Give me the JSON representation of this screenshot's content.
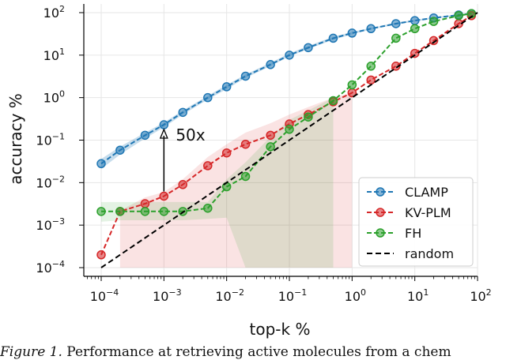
{
  "chart_data": {
    "type": "line",
    "xlabel": "top-k %",
    "ylabel": "accuracy %",
    "xscale": "log",
    "yscale": "log",
    "xlim": [
      0.0001,
      100
    ],
    "ylim": [
      0.0001,
      100
    ],
    "grid": true,
    "legend_position": "lower-right",
    "x_ticks": [
      0.0001,
      0.001,
      0.01,
      0.1,
      1,
      10,
      100
    ],
    "x_tick_labels": [
      [
        "10",
        "-4"
      ],
      [
        "10",
        "-3"
      ],
      [
        "10",
        "-2"
      ],
      [
        "10",
        "-1"
      ],
      [
        "10",
        "0"
      ],
      [
        "10",
        "1"
      ],
      [
        "10",
        "2"
      ]
    ],
    "y_ticks": [
      0.0001,
      0.001,
      0.01,
      0.1,
      1,
      10,
      100
    ],
    "y_tick_labels": [
      [
        "10",
        "-4"
      ],
      [
        "10",
        "-3"
      ],
      [
        "10",
        "-2"
      ],
      [
        "10",
        "-1"
      ],
      [
        "10",
        "0"
      ],
      [
        "10",
        "1"
      ],
      [
        "10",
        "2"
      ]
    ],
    "series": [
      {
        "name": "CLAMP",
        "color": "#1f77b4",
        "x": [
          0.0001,
          0.0002,
          0.0005,
          0.001,
          0.002,
          0.005,
          0.01,
          0.02,
          0.05,
          0.1,
          0.2,
          0.5,
          1,
          2,
          5,
          10,
          20,
          50,
          80
        ],
        "y": [
          0.028,
          0.058,
          0.13,
          0.23,
          0.45,
          1.0,
          1.8,
          3.2,
          6.0,
          10,
          15,
          25,
          33,
          42,
          55,
          65,
          75,
          88,
          95
        ],
        "band_low": [
          0.021,
          0.046,
          0.11,
          0.2,
          0.4,
          0.9,
          1.6,
          2.9,
          5.5,
          9.3,
          14,
          23,
          31,
          40,
          52,
          62,
          72,
          85,
          93
        ],
        "band_high": [
          0.036,
          0.07,
          0.15,
          0.26,
          0.5,
          1.1,
          2.0,
          3.5,
          6.6,
          11,
          16.5,
          27,
          35,
          44,
          58,
          68,
          78,
          91,
          97
        ]
      },
      {
        "name": "KV-PLM",
        "color": "#d62728",
        "x": [
          0.0001,
          0.0002,
          0.0005,
          0.001,
          0.002,
          0.005,
          0.01,
          0.02,
          0.05,
          0.1,
          0.2,
          0.5,
          1,
          2,
          5,
          10,
          20,
          50,
          80
        ],
        "y": [
          0.0002,
          0.0021,
          0.0032,
          0.0048,
          0.009,
          0.025,
          0.05,
          0.08,
          0.13,
          0.24,
          0.4,
          0.8,
          1.3,
          2.6,
          5.5,
          11,
          22,
          55,
          85
        ]
      },
      {
        "name": "FH",
        "color": "#2ca02c",
        "x": [
          0.0001,
          0.0002,
          0.0005,
          0.001,
          0.002,
          0.005,
          0.01,
          0.02,
          0.05,
          0.1,
          0.2,
          0.5,
          1,
          2,
          5,
          10,
          20,
          50,
          80
        ],
        "y": [
          0.0021,
          0.0021,
          0.0021,
          0.0021,
          0.0021,
          0.0025,
          0.008,
          0.014,
          0.07,
          0.18,
          0.35,
          0.85,
          2.0,
          5.5,
          25,
          42,
          62,
          85,
          95
        ]
      },
      {
        "name": "random",
        "color": "#000000",
        "dashed": true,
        "x": [
          0.0001,
          100
        ],
        "y": [
          0.0001,
          100
        ]
      }
    ],
    "shaded_regions": [
      {
        "series": "KV-PLM",
        "color": "#d62728",
        "x": [
          0.0002,
          0.0005,
          0.001,
          0.002,
          0.005,
          0.01,
          0.02,
          0.05,
          0.1,
          0.2,
          0.5,
          1
        ],
        "low": [
          0.0001,
          0.0001,
          0.0001,
          0.0001,
          0.0001,
          0.0001,
          0.0001,
          0.0001,
          0.0001,
          0.0001,
          0.0001,
          0.0001
        ],
        "high": [
          0.0022,
          0.0045,
          0.006,
          0.012,
          0.04,
          0.08,
          0.15,
          0.25,
          0.4,
          0.6,
          1.0,
          1.3
        ]
      },
      {
        "series": "FH",
        "color": "#2ca02c",
        "x": [
          0.0001,
          0.0002,
          0.0005,
          0.001,
          0.002,
          0.005,
          0.01,
          0.02,
          0.05,
          0.1,
          0.2,
          0.5
        ],
        "low": [
          0.0012,
          0.0013,
          0.0013,
          0.0013,
          0.0013,
          0.0014,
          0.0015,
          0.0001,
          0.0001,
          0.0001,
          0.0001,
          0.0001
        ],
        "high": [
          0.0035,
          0.0035,
          0.0035,
          0.0035,
          0.0035,
          0.0035,
          0.012,
          0.03,
          0.12,
          0.3,
          0.5,
          1.0
        ]
      }
    ],
    "annotation": {
      "text": "50x",
      "x": 0.001,
      "y_from": 0.0048,
      "y_to": 0.23
    }
  },
  "caption": {
    "label": "Figure 1.",
    "text": " Performance at retrieving active molecules from a chem"
  }
}
